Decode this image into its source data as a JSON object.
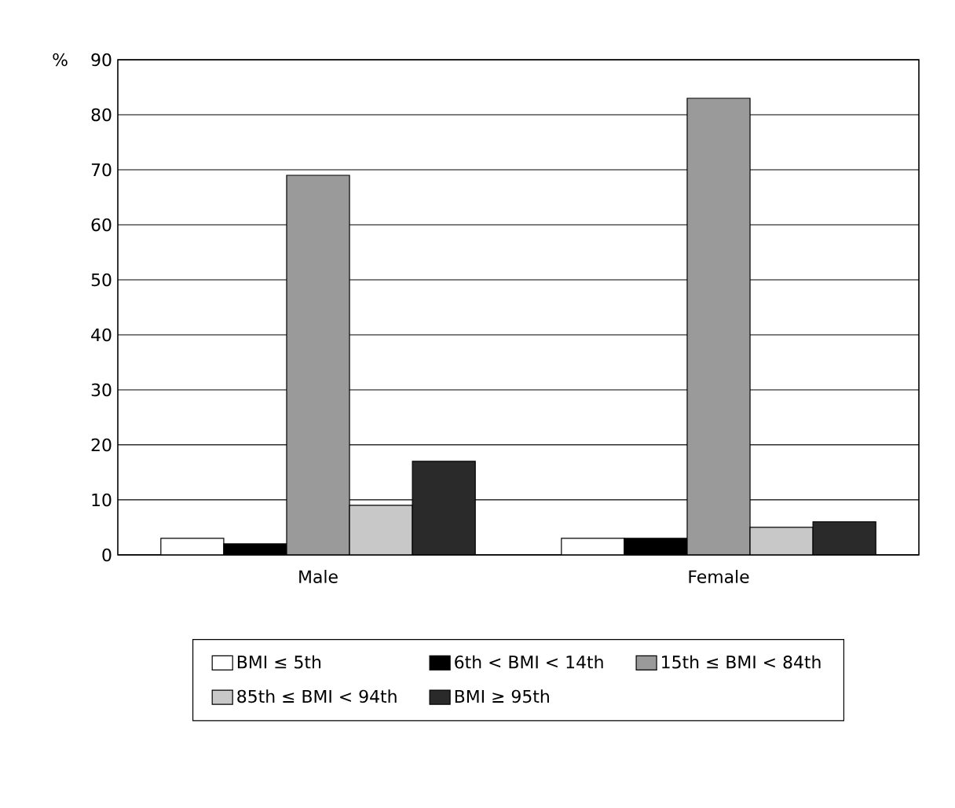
{
  "chart_data": {
    "type": "bar",
    "ylabel": "%",
    "categories": [
      "Male",
      "Female"
    ],
    "series": [
      {
        "name": "BMI ≤ 5th",
        "color": "#ffffff",
        "values": [
          3,
          3
        ]
      },
      {
        "name": "6th < BMI < 14th",
        "color": "#000000",
        "values": [
          2,
          3
        ]
      },
      {
        "name": "15th ≤ BMI < 84th",
        "color": "#9a9a9a",
        "values": [
          69,
          83
        ]
      },
      {
        "name": "85th ≤ BMI < 94th",
        "color": "#c8c8c8",
        "values": [
          9,
          5
        ]
      },
      {
        "name": "BMI ≥ 95th",
        "color": "#2a2a2a",
        "values": [
          17,
          6
        ]
      }
    ],
    "ylim": [
      0,
      90
    ],
    "yticks": [
      0,
      10,
      20,
      30,
      40,
      50,
      60,
      70,
      80,
      90
    ],
    "grid": "y",
    "legend": "bottom"
  }
}
